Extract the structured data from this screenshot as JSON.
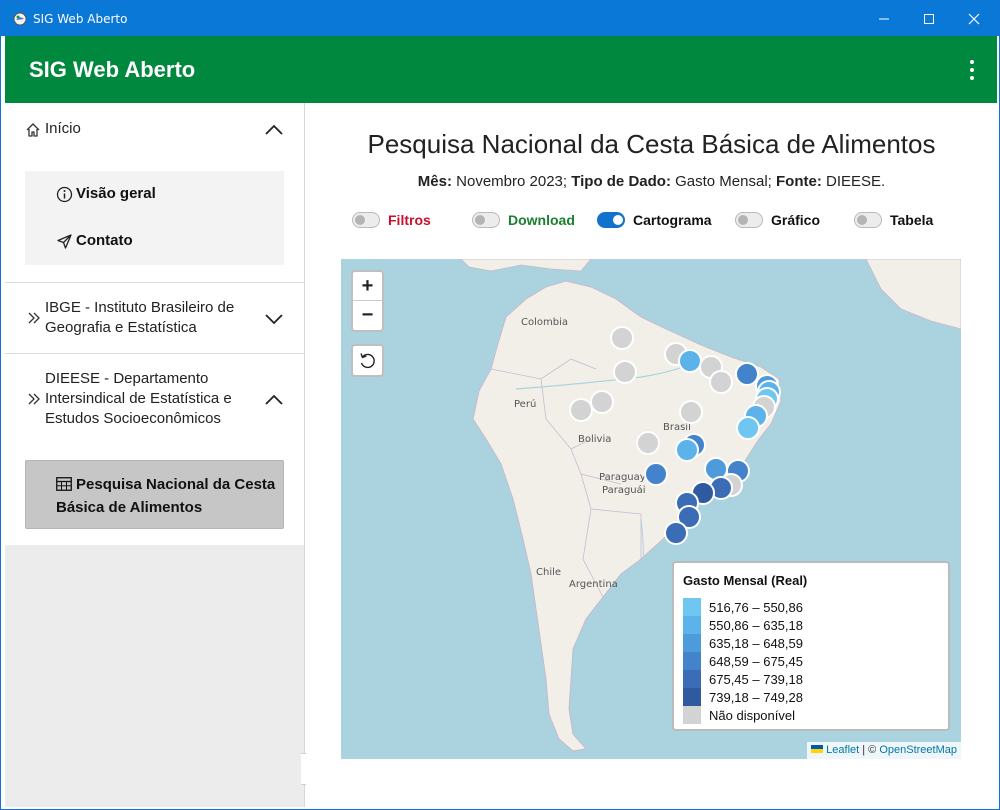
{
  "window": {
    "title": "SIG Web Aberto"
  },
  "appbar": {
    "brand": "SIG Web Aberto"
  },
  "sidebar": {
    "sections": [
      {
        "label": "Início",
        "expanded": true,
        "items": [
          {
            "label": "Visão geral"
          },
          {
            "label": "Contato"
          }
        ]
      },
      {
        "label": "IBGE - Instituto Brasileiro de Geografia e Estatística",
        "expanded": false
      },
      {
        "label": "DIEESE - Departamento Intersindical de Estatística e Estudos Socioeconômicos",
        "expanded": true,
        "items": [
          {
            "label": "Pesquisa Nacional da Cesta Básica de Alimentos",
            "active": true
          }
        ]
      }
    ]
  },
  "main": {
    "title": "Pesquisa Nacional da Cesta Básica de Alimentos",
    "subtitle": {
      "mes_label": "Mês:",
      "mes_value": " Novembro 2023; ",
      "tipo_label": "Tipo de Dado:",
      "tipo_value": " Gasto Mensal; ",
      "fonte_label": "Fonte:",
      "fonte_value": " DIEESE."
    },
    "toggles": [
      {
        "label": "Filtros",
        "on": false,
        "color": "#c8102e"
      },
      {
        "label": "Download",
        "on": false,
        "color": "#1a7f2e"
      },
      {
        "label": "Cartograma",
        "on": true,
        "color": "#111111"
      },
      {
        "label": "Gráfico",
        "on": false,
        "color": "#111111"
      },
      {
        "label": "Tabela",
        "on": false,
        "color": "#111111"
      }
    ]
  },
  "map": {
    "zoom_in": "+",
    "zoom_out": "−",
    "labels": [
      "Colombia",
      "Perú",
      "Bolivia",
      "Brasil",
      "Paraguay",
      "Paraguái",
      "Chile",
      "Argentina"
    ],
    "legend": {
      "title": "Gasto Mensal (Real)",
      "classes": [
        {
          "label": "516,76 – 550,86",
          "color": "#6ec6f1"
        },
        {
          "label": "550,86 – 635,18",
          "color": "#5cb3ea"
        },
        {
          "label": "635,18 – 648,59",
          "color": "#4e9bdc"
        },
        {
          "label": "648,59 – 675,45",
          "color": "#4283cb"
        },
        {
          "label": "675,45 – 739,18",
          "color": "#3a6db6"
        },
        {
          "label": "739,18 – 749,28",
          "color": "#2f5a9f"
        },
        {
          "label": "Não disponível",
          "color": "#d3d3d3"
        }
      ]
    },
    "attribution": {
      "leaflet": "Leaflet",
      "sep": " | © ",
      "osm": "OpenStreetMap"
    }
  }
}
